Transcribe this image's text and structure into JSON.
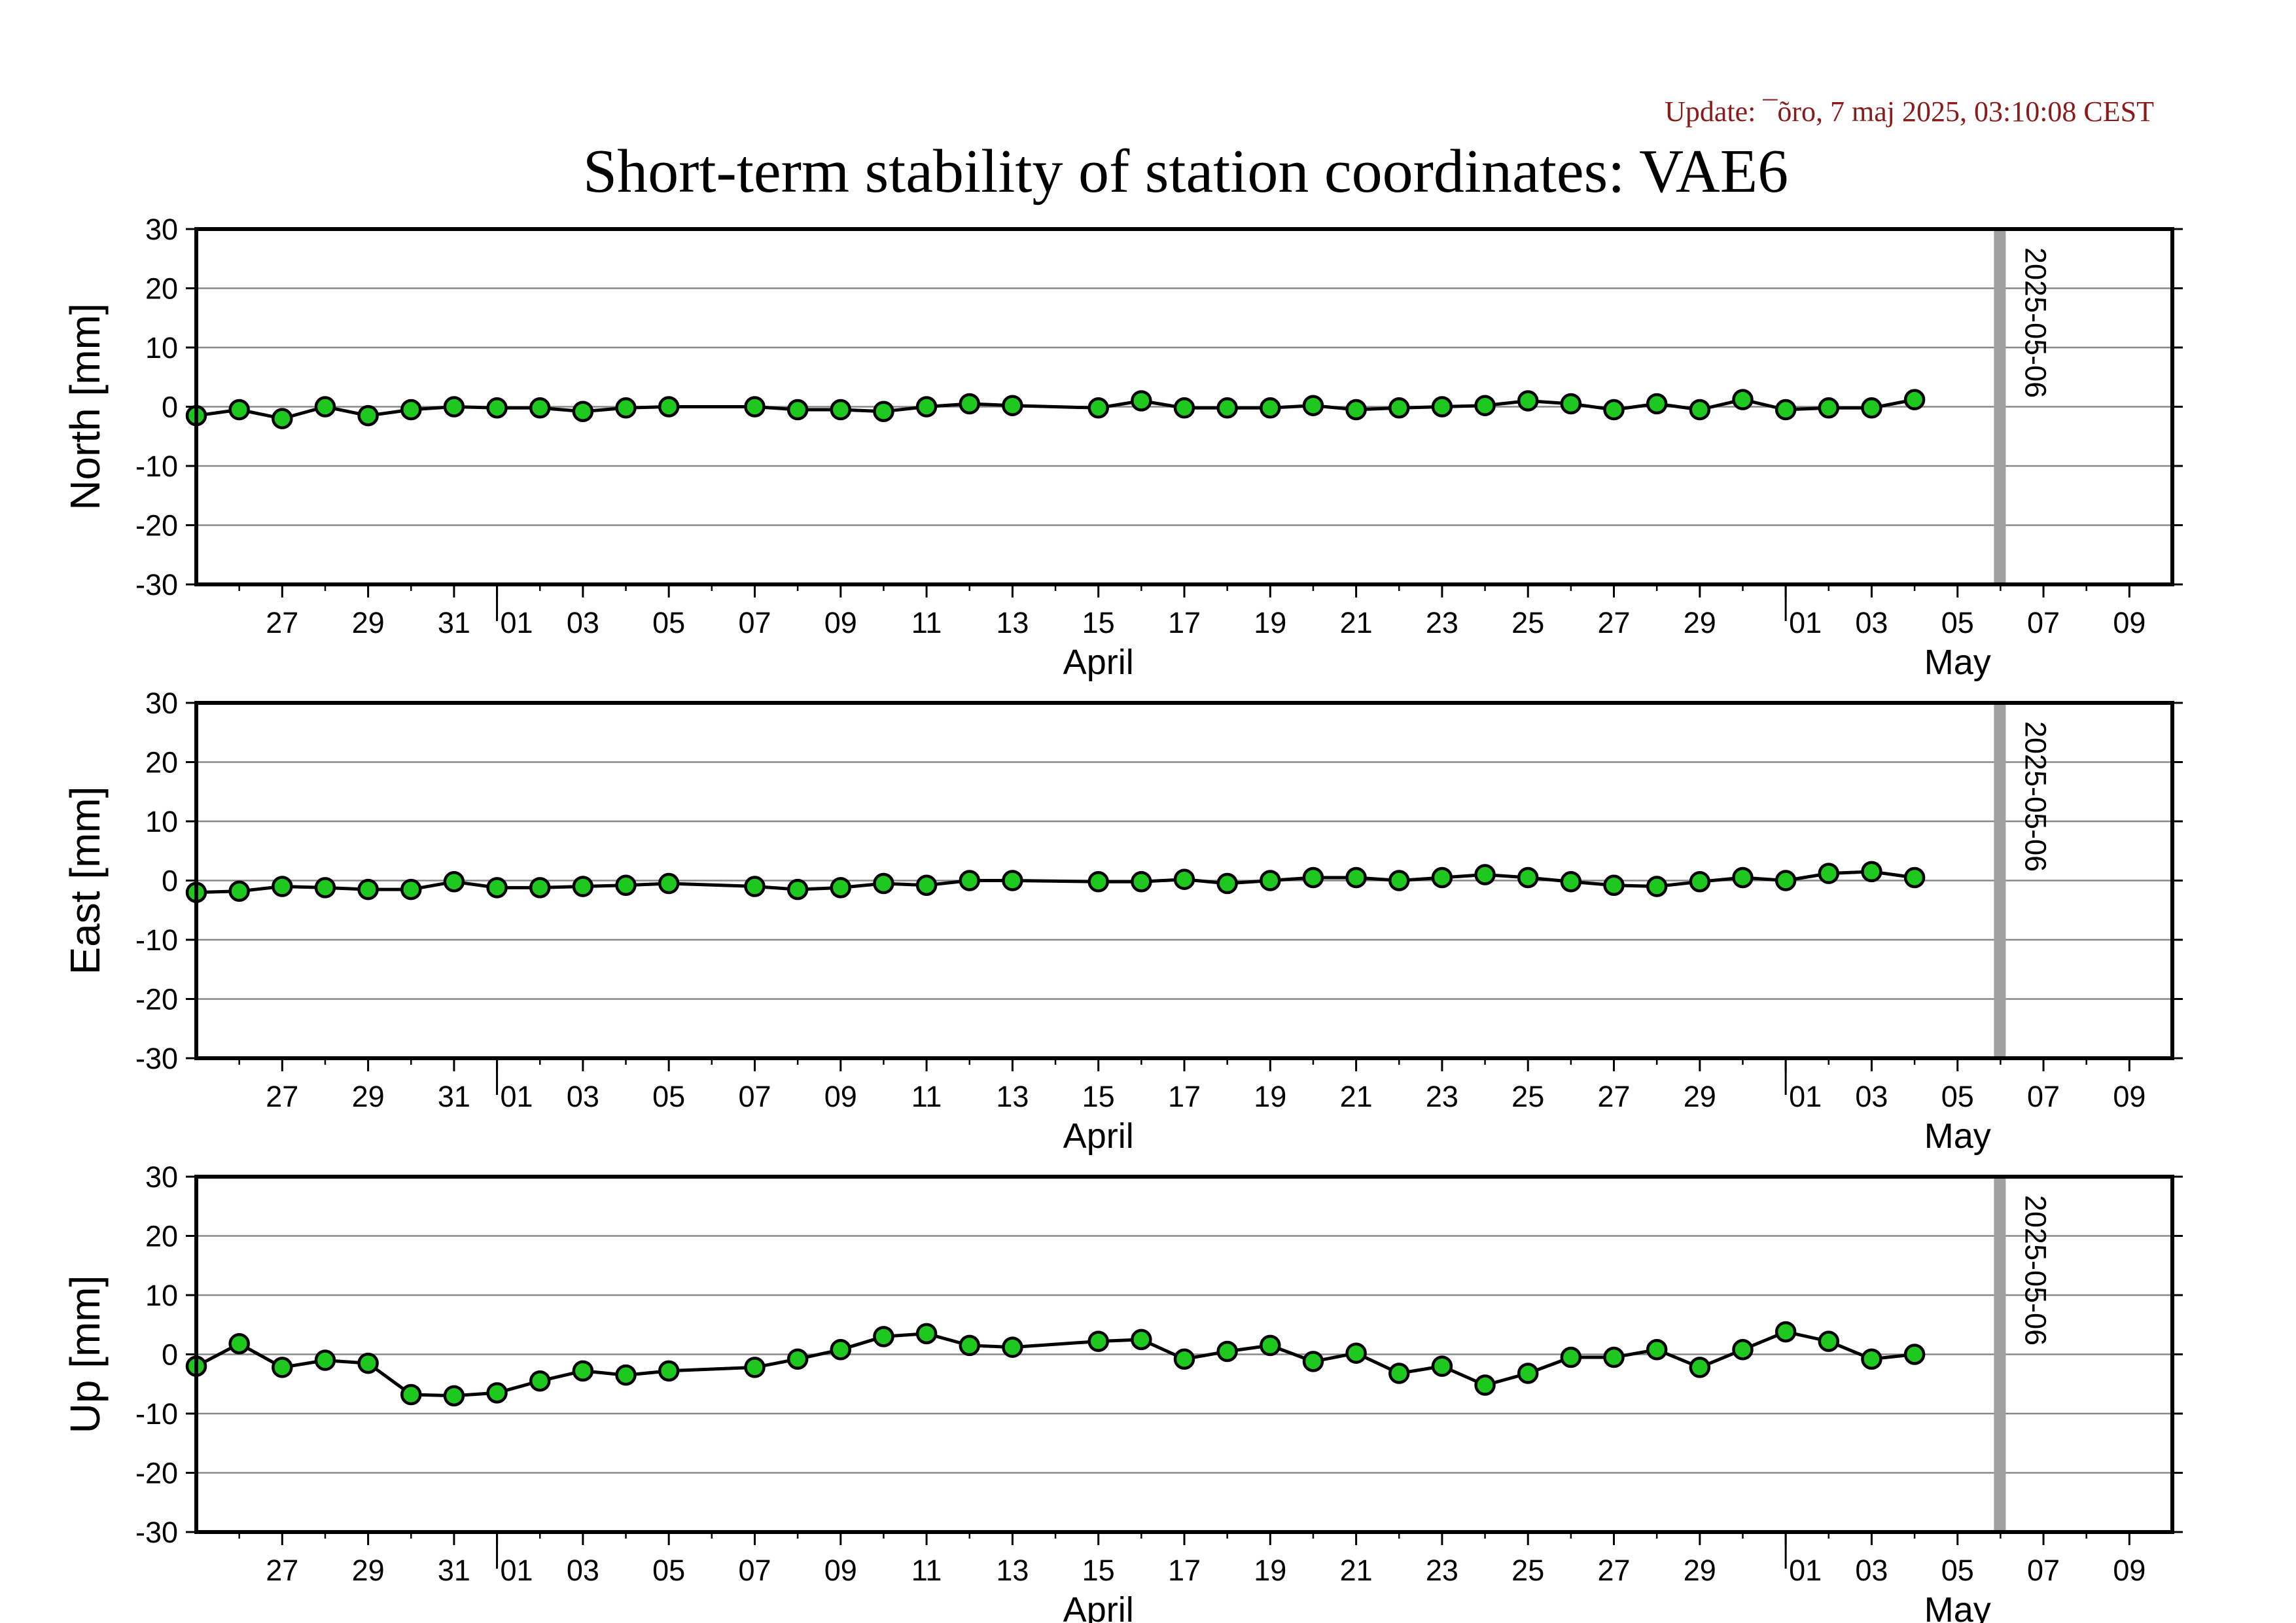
{
  "header": {
    "title": "Short-term stability of station coordinates: VAE6",
    "update": "Update: ¯õro, 7 maj 2025, 03:10:08 CEST"
  },
  "colors": {
    "marker_fill": "#1ec81e",
    "marker_stroke": "#000000",
    "line": "#000000",
    "gridline": "#888888",
    "vertical_marker": "#a0a0a0",
    "title": "#000000",
    "update_text": "#8b1a1a"
  },
  "x_axis": {
    "range": [
      "2025-03-25",
      "2025-05-10"
    ],
    "tick_labels": [
      {
        "date": "2025-03-27",
        "label": "27"
      },
      {
        "date": "2025-03-29",
        "label": "29"
      },
      {
        "date": "2025-03-31",
        "label": "31"
      },
      {
        "date": "2025-04-01",
        "label": "01"
      },
      {
        "date": "2025-04-03",
        "label": "03"
      },
      {
        "date": "2025-04-05",
        "label": "05"
      },
      {
        "date": "2025-04-07",
        "label": "07"
      },
      {
        "date": "2025-04-09",
        "label": "09"
      },
      {
        "date": "2025-04-11",
        "label": "11"
      },
      {
        "date": "2025-04-13",
        "label": "13"
      },
      {
        "date": "2025-04-15",
        "label": "15"
      },
      {
        "date": "2025-04-17",
        "label": "17"
      },
      {
        "date": "2025-04-19",
        "label": "19"
      },
      {
        "date": "2025-04-21",
        "label": "21"
      },
      {
        "date": "2025-04-23",
        "label": "23"
      },
      {
        "date": "2025-04-25",
        "label": "25"
      },
      {
        "date": "2025-04-27",
        "label": "27"
      },
      {
        "date": "2025-04-29",
        "label": "29"
      },
      {
        "date": "2025-05-01",
        "label": "01"
      },
      {
        "date": "2025-05-03",
        "label": "03"
      },
      {
        "date": "2025-05-05",
        "label": "05"
      },
      {
        "date": "2025-05-07",
        "label": "07"
      },
      {
        "date": "2025-05-09",
        "label": "09"
      }
    ],
    "month_labels": [
      {
        "date": "2025-04-15",
        "label": "April"
      },
      {
        "date": "2025-05-05",
        "label": "May"
      }
    ],
    "month_boundaries": [
      "2025-04-01",
      "2025-05-01"
    ]
  },
  "chart_data": [
    {
      "type": "line",
      "ylabel": "North [mm]",
      "ylim": [
        -30,
        30
      ],
      "yticks": [
        30,
        20,
        10,
        0,
        -10,
        -20,
        -30
      ],
      "grid": true,
      "vertical_marker": {
        "date": "2025-05-06",
        "label": "2025-05-06"
      },
      "points": [
        {
          "x": "2025-03-25",
          "y": -1.5
        },
        {
          "x": "2025-03-26",
          "y": -0.5
        },
        {
          "x": "2025-03-27",
          "y": -2.0
        },
        {
          "x": "2025-03-28",
          "y": 0.0
        },
        {
          "x": "2025-03-29",
          "y": -1.5
        },
        {
          "x": "2025-03-30",
          "y": -0.5
        },
        {
          "x": "2025-03-31",
          "y": 0.0
        },
        {
          "x": "2025-04-01",
          "y": -0.2
        },
        {
          "x": "2025-04-02",
          "y": -0.2
        },
        {
          "x": "2025-04-03",
          "y": -0.8
        },
        {
          "x": "2025-04-04",
          "y": -0.2
        },
        {
          "x": "2025-04-05",
          "y": 0.0
        },
        {
          "x": "2025-04-07",
          "y": 0.0
        },
        {
          "x": "2025-04-08",
          "y": -0.5
        },
        {
          "x": "2025-04-09",
          "y": -0.5
        },
        {
          "x": "2025-04-10",
          "y": -0.8
        },
        {
          "x": "2025-04-11",
          "y": 0.0
        },
        {
          "x": "2025-04-12",
          "y": 0.5
        },
        {
          "x": "2025-04-13",
          "y": 0.2
        },
        {
          "x": "2025-04-15",
          "y": -0.2
        },
        {
          "x": "2025-04-16",
          "y": 1.0
        },
        {
          "x": "2025-04-17",
          "y": -0.2
        },
        {
          "x": "2025-04-18",
          "y": -0.2
        },
        {
          "x": "2025-04-19",
          "y": -0.2
        },
        {
          "x": "2025-04-20",
          "y": 0.2
        },
        {
          "x": "2025-04-21",
          "y": -0.5
        },
        {
          "x": "2025-04-22",
          "y": -0.2
        },
        {
          "x": "2025-04-23",
          "y": 0.0
        },
        {
          "x": "2025-04-24",
          "y": 0.2
        },
        {
          "x": "2025-04-25",
          "y": 1.0
        },
        {
          "x": "2025-04-26",
          "y": 0.5
        },
        {
          "x": "2025-04-27",
          "y": -0.5
        },
        {
          "x": "2025-04-28",
          "y": 0.5
        },
        {
          "x": "2025-04-29",
          "y": -0.5
        },
        {
          "x": "2025-04-30",
          "y": 1.2
        },
        {
          "x": "2025-05-01",
          "y": -0.5
        },
        {
          "x": "2025-05-02",
          "y": -0.2
        },
        {
          "x": "2025-05-03",
          "y": -0.2
        },
        {
          "x": "2025-05-04",
          "y": 1.2
        }
      ]
    },
    {
      "type": "line",
      "ylabel": "East [mm]",
      "ylim": [
        -30,
        30
      ],
      "yticks": [
        30,
        20,
        10,
        0,
        -10,
        -20,
        -30
      ],
      "grid": true,
      "vertical_marker": {
        "date": "2025-05-06",
        "label": "2025-05-06"
      },
      "points": [
        {
          "x": "2025-03-25",
          "y": -2.0
        },
        {
          "x": "2025-03-26",
          "y": -1.8
        },
        {
          "x": "2025-03-27",
          "y": -1.0
        },
        {
          "x": "2025-03-28",
          "y": -1.2
        },
        {
          "x": "2025-03-29",
          "y": -1.5
        },
        {
          "x": "2025-03-30",
          "y": -1.5
        },
        {
          "x": "2025-03-31",
          "y": -0.2
        },
        {
          "x": "2025-04-01",
          "y": -1.2
        },
        {
          "x": "2025-04-02",
          "y": -1.2
        },
        {
          "x": "2025-04-03",
          "y": -1.0
        },
        {
          "x": "2025-04-04",
          "y": -0.8
        },
        {
          "x": "2025-04-05",
          "y": -0.5
        },
        {
          "x": "2025-04-07",
          "y": -1.0
        },
        {
          "x": "2025-04-08",
          "y": -1.5
        },
        {
          "x": "2025-04-09",
          "y": -1.2
        },
        {
          "x": "2025-04-10",
          "y": -0.5
        },
        {
          "x": "2025-04-11",
          "y": -0.8
        },
        {
          "x": "2025-04-12",
          "y": 0.0
        },
        {
          "x": "2025-04-13",
          "y": 0.0
        },
        {
          "x": "2025-04-15",
          "y": -0.2
        },
        {
          "x": "2025-04-16",
          "y": -0.2
        },
        {
          "x": "2025-04-17",
          "y": 0.2
        },
        {
          "x": "2025-04-18",
          "y": -0.5
        },
        {
          "x": "2025-04-19",
          "y": 0.0
        },
        {
          "x": "2025-04-20",
          "y": 0.5
        },
        {
          "x": "2025-04-21",
          "y": 0.5
        },
        {
          "x": "2025-04-22",
          "y": 0.0
        },
        {
          "x": "2025-04-23",
          "y": 0.5
        },
        {
          "x": "2025-04-24",
          "y": 1.0
        },
        {
          "x": "2025-04-25",
          "y": 0.5
        },
        {
          "x": "2025-04-26",
          "y": -0.2
        },
        {
          "x": "2025-04-27",
          "y": -0.8
        },
        {
          "x": "2025-04-28",
          "y": -1.0
        },
        {
          "x": "2025-04-29",
          "y": -0.2
        },
        {
          "x": "2025-04-30",
          "y": 0.5
        },
        {
          "x": "2025-05-01",
          "y": 0.0
        },
        {
          "x": "2025-05-02",
          "y": 1.2
        },
        {
          "x": "2025-05-03",
          "y": 1.5
        },
        {
          "x": "2025-05-04",
          "y": 0.5
        }
      ]
    },
    {
      "type": "line",
      "ylabel": "Up [mm]",
      "ylim": [
        -30,
        30
      ],
      "yticks": [
        30,
        20,
        10,
        0,
        -10,
        -20,
        -30
      ],
      "grid": true,
      "vertical_marker": {
        "date": "2025-05-06",
        "label": "2025-05-06"
      },
      "points": [
        {
          "x": "2025-03-25",
          "y": -2.0
        },
        {
          "x": "2025-03-26",
          "y": 1.8
        },
        {
          "x": "2025-03-27",
          "y": -2.2
        },
        {
          "x": "2025-03-28",
          "y": -1.0
        },
        {
          "x": "2025-03-29",
          "y": -1.5
        },
        {
          "x": "2025-03-30",
          "y": -6.8
        },
        {
          "x": "2025-03-31",
          "y": -7.0
        },
        {
          "x": "2025-04-01",
          "y": -6.5
        },
        {
          "x": "2025-04-02",
          "y": -4.5
        },
        {
          "x": "2025-04-03",
          "y": -2.8
        },
        {
          "x": "2025-04-04",
          "y": -3.5
        },
        {
          "x": "2025-04-05",
          "y": -2.8
        },
        {
          "x": "2025-04-07",
          "y": -2.2
        },
        {
          "x": "2025-04-08",
          "y": -0.8
        },
        {
          "x": "2025-04-09",
          "y": 0.8
        },
        {
          "x": "2025-04-10",
          "y": 3.0
        },
        {
          "x": "2025-04-11",
          "y": 3.5
        },
        {
          "x": "2025-04-12",
          "y": 1.5
        },
        {
          "x": "2025-04-13",
          "y": 1.2
        },
        {
          "x": "2025-04-15",
          "y": 2.2
        },
        {
          "x": "2025-04-16",
          "y": 2.5
        },
        {
          "x": "2025-04-17",
          "y": -0.8
        },
        {
          "x": "2025-04-18",
          "y": 0.5
        },
        {
          "x": "2025-04-19",
          "y": 1.5
        },
        {
          "x": "2025-04-20",
          "y": -1.2
        },
        {
          "x": "2025-04-21",
          "y": 0.2
        },
        {
          "x": "2025-04-22",
          "y": -3.2
        },
        {
          "x": "2025-04-23",
          "y": -2.0
        },
        {
          "x": "2025-04-24",
          "y": -5.2
        },
        {
          "x": "2025-04-25",
          "y": -3.2
        },
        {
          "x": "2025-04-26",
          "y": -0.5
        },
        {
          "x": "2025-04-27",
          "y": -0.5
        },
        {
          "x": "2025-04-28",
          "y": 0.8
        },
        {
          "x": "2025-04-29",
          "y": -2.2
        },
        {
          "x": "2025-04-30",
          "y": 0.8
        },
        {
          "x": "2025-05-01",
          "y": 3.8
        },
        {
          "x": "2025-05-02",
          "y": 2.2
        },
        {
          "x": "2025-05-03",
          "y": -0.8
        },
        {
          "x": "2025-05-04",
          "y": 0.0
        }
      ]
    }
  ]
}
